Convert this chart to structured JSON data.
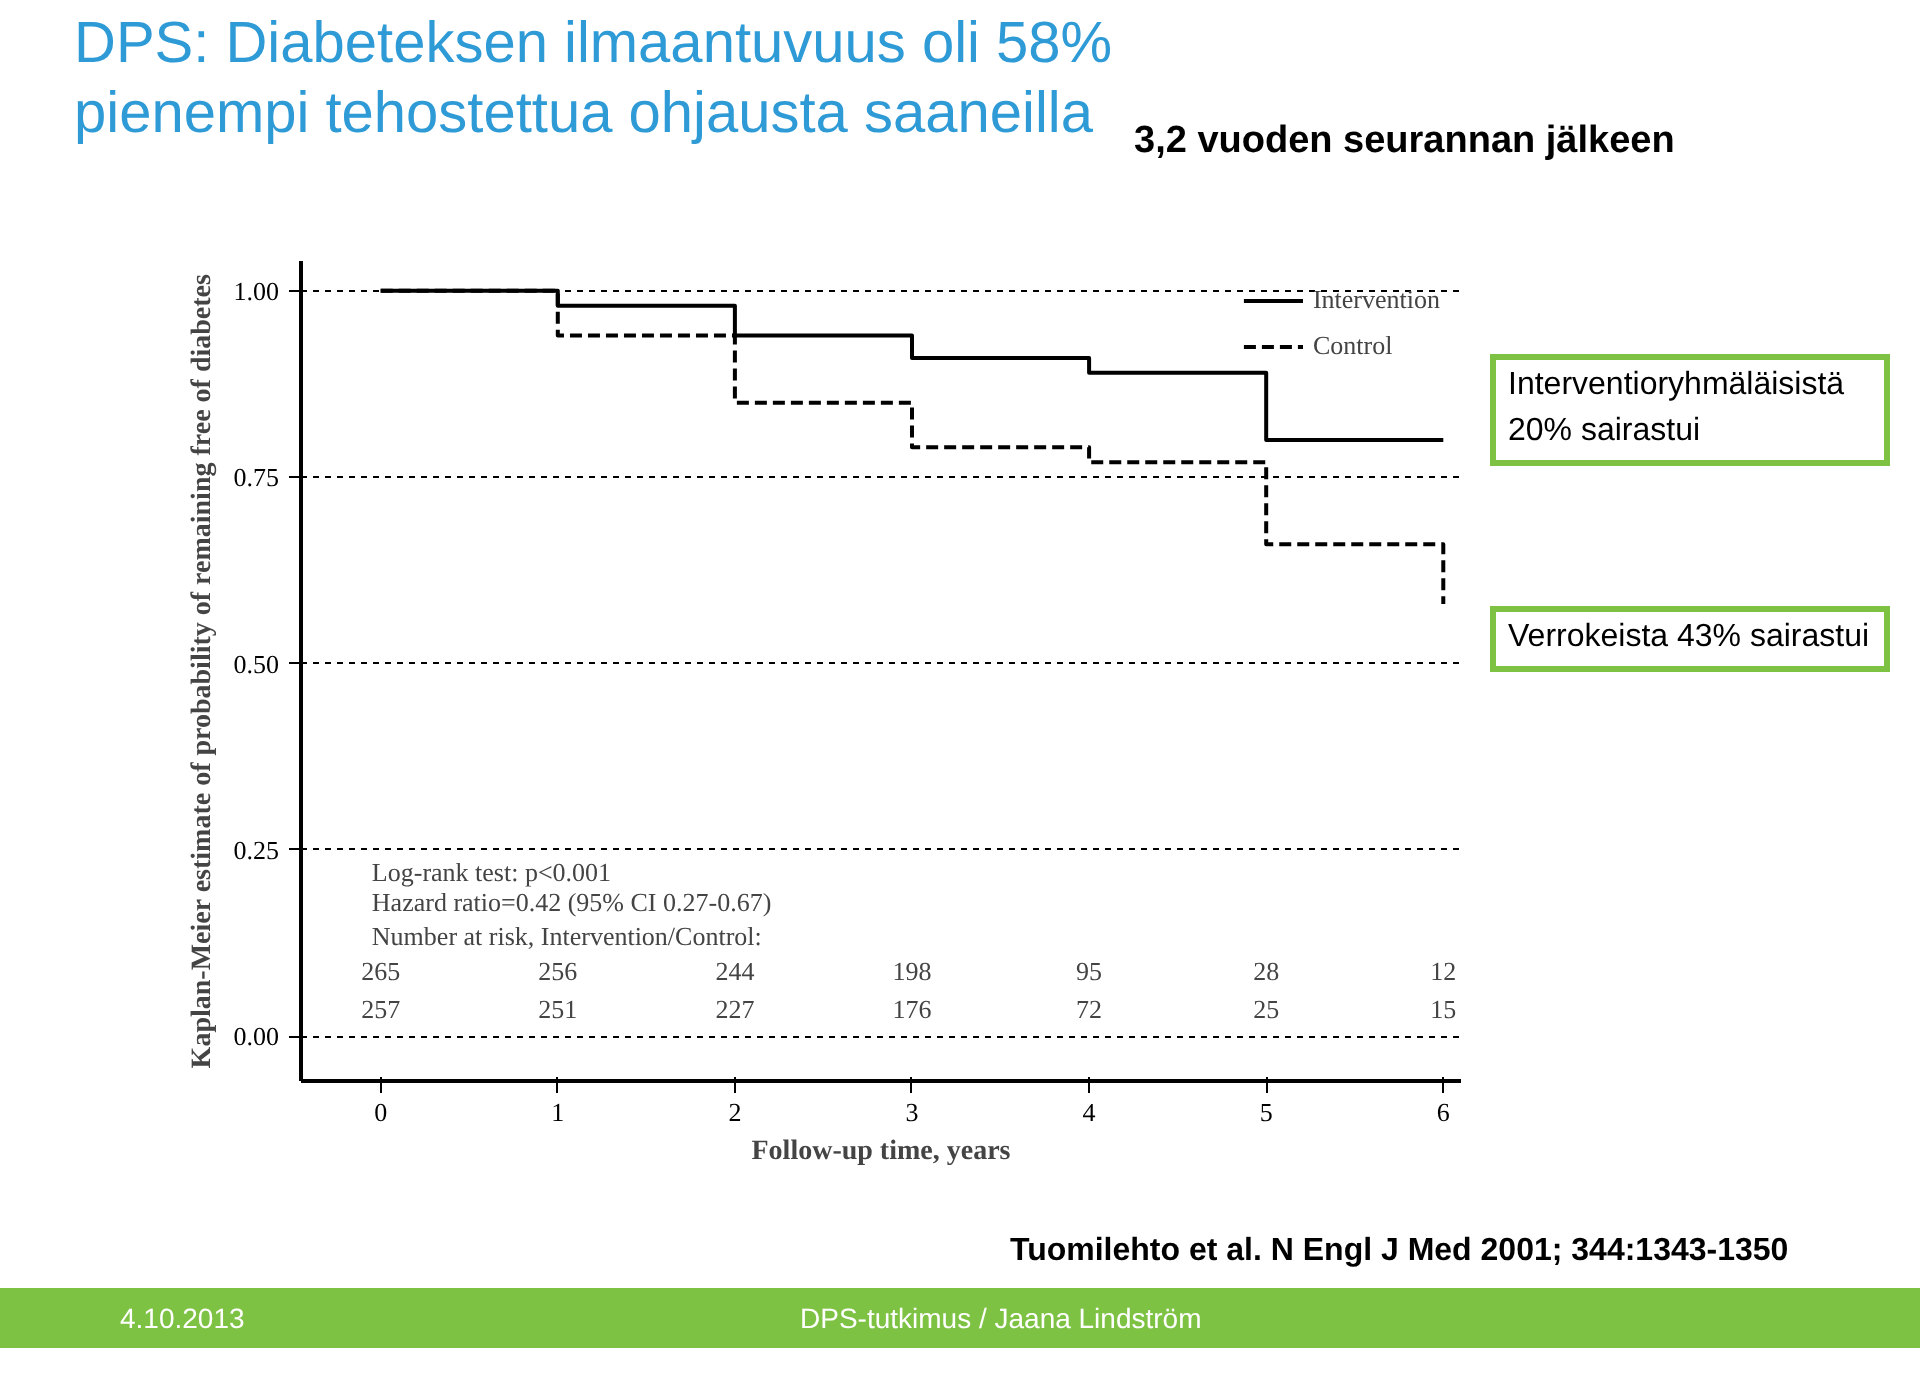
{
  "chart_data": {
    "type": "step",
    "title": "DPS: Diabeteksen ilmaantuvuus oli 58% pienempi tehostettua ohjausta saaneilla",
    "subtitle": "3,2 vuoden seurannan jälkeen",
    "xlabel": "Follow-up time, years",
    "ylabel": "Kaplan-Meier estimate of probability of remaining free of diabetes",
    "x": [
      0,
      1,
      2,
      3,
      4,
      5,
      6
    ],
    "series": [
      {
        "name": "Intervention",
        "color": "#000000",
        "line_style": "solid",
        "values": [
          1.0,
          0.98,
          0.94,
          0.91,
          0.89,
          0.8,
          0.8
        ]
      },
      {
        "name": "Control",
        "color": "#000000",
        "line_style": "dashed",
        "values": [
          1.0,
          0.94,
          0.85,
          0.79,
          0.77,
          0.66,
          0.58
        ]
      }
    ],
    "xlim": [
      -0.45,
      6.1
    ],
    "xticks": [
      0,
      1,
      2,
      3,
      4,
      5,
      6
    ],
    "ylim": [
      -0.06,
      1.04
    ],
    "yticks": [
      {
        "value": 0,
        "label": "0.00"
      },
      {
        "value": 0.25,
        "label": "0.25"
      },
      {
        "value": 0.5,
        "label": "0.50"
      },
      {
        "value": 0.75,
        "label": "0.75"
      },
      {
        "value": 1,
        "label": "1.00"
      }
    ],
    "grid": "y",
    "legend": "top right",
    "marker": "none",
    "annotations": [
      "Interventioryhmäläisistä 20% sairastui",
      "Verrokeista 43% sairastui",
      "Log-rank test: p<0.001",
      "Hazard ratio=0.42 (95% CI 0.27-0.67)",
      "Number at risk, Intervention/Control:",
      "265 256 244 198 95 28 12",
      "257 251 227 176 72 25 15",
      "Tuomilehto et al. N Engl J Med 2001; 344:1343-1350",
      "4.10.2013",
      "DPS-tutkimus / Jaana Lindström"
    ]
  }
}
